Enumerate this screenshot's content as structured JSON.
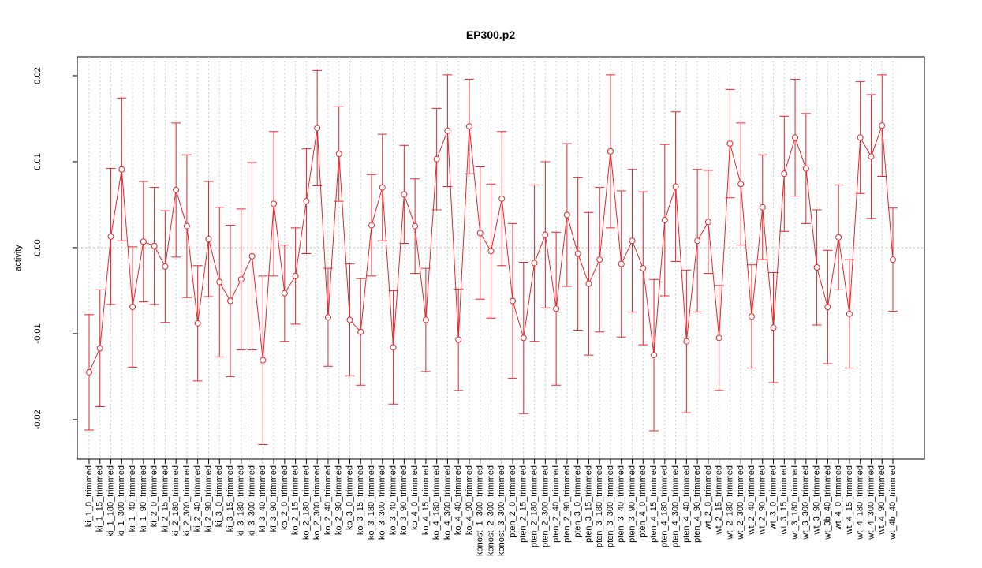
{
  "chart_data": {
    "type": "line",
    "title": "EP300.p2",
    "y_label": "activity",
    "color": "#e8262a",
    "grid": true,
    "reference_line": 0,
    "ylim": [
      -0.0246,
      0.0222
    ],
    "yticks": [
      -0.02,
      -0.01,
      {
        "value": 0,
        "label": "0.00"
      },
      0.01,
      0.02
    ],
    "categories": [
      "ki_1_0_trimmed",
      "ki_1_15_trimmed",
      "ki_1_180_trimmed",
      "ki_1_300_trimmed",
      "ki_1_40_trimmed",
      "ki_1_90_trimmed",
      "ki_2_0_trimmed",
      "ki_2_15_trimmed",
      "ki_2_180_trimmed",
      "ki_2_300_trimmed",
      "ki_2_40_trimmed",
      "ki_2_90_trimmed",
      "ki_3_0_trimmed",
      "ki_3_15_trimmed",
      "ki_3_180_trimmed",
      "ki_3_300_trimmed",
      "ki_3_40_trimmed",
      "ki_3_90_trimmed",
      "ko_2_0_trimmed",
      "ko_2_15_trimmed",
      "ko_2_180_trimmed",
      "ko_2_300_trimmed",
      "ko_2_40_trimmed",
      "ko_2_90_trimmed",
      "ko_3_0_trimmed",
      "ko_3_15_trimmed",
      "ko_3_180_trimmed",
      "ko_3_300_trimmed",
      "ko_3_40_trimmed",
      "ko_3_90_trimmed",
      "ko_4_0_trimmed",
      "ko_4_15_trimmed",
      "ko_4_180_trimmed",
      "ko_4_300_trimmed",
      "ko_4_40_trimmed",
      "ko_4_90_trimmed",
      "konost_1_300_trimmed",
      "konost_2_300_trimmed",
      "konost_3_300_trimmed",
      "pten_2_0_trimmed",
      "pten_2_15_trimmed",
      "pten_2_180_trimmed",
      "pten_2_300_trimmed",
      "pten_2_40_trimmed",
      "pten_2_90_trimmed",
      "pten_3_0_trimmed",
      "pten_3_15_trimmed",
      "pten_3_180_trimmed",
      "pten_3_300_trimmed",
      "pten_3_40_trimmed",
      "pten_3_90_trimmed",
      "pten_4_0_trimmed",
      "pten_4_15_trimmed",
      "pten_4_180_trimmed",
      "pten_4_300_trimmed",
      "pten_4_40_trimmed",
      "pten_4_90_trimmed",
      "wt_2_0_trimmed",
      "wt_2_15_trimmed",
      "wt_2_180_trimmed",
      "wt_2_300_trimmed",
      "wt_2_40_trimmed",
      "wt_2_90_trimmed",
      "wt_3_0_trimmed",
      "wt_3_15_trimmed",
      "wt_3_180_trimmed",
      "wt_3_300_trimmed",
      "wt_3_90_trimmed",
      "wt_3b_40_trimmed",
      "wt_4_0_trimmed",
      "wt_4_15_trimmed",
      "wt_4_180_trimmed",
      "wt_4_300_trimmed",
      "wt_4_90_trimmed",
      "wt_4b_40_trimmed"
    ],
    "values": [
      -0.0145,
      -0.0117,
      0.0013,
      0.0091,
      -0.0069,
      0.0007,
      0.0002,
      -0.0022,
      0.0067,
      0.0025,
      -0.0088,
      0.001,
      -0.004,
      -0.0062,
      -0.0037,
      -0.001,
      -0.0131,
      0.0051,
      -0.0053,
      -0.0033,
      0.0054,
      0.0139,
      -0.0081,
      0.0109,
      -0.0084,
      -0.0098,
      0.0026,
      0.007,
      -0.0116,
      0.0062,
      0.0025,
      -0.0084,
      0.0103,
      0.0136,
      -0.0107,
      0.0141,
      0.0017,
      -0.0004,
      0.0057,
      -0.0062,
      -0.0105,
      -0.0018,
      0.0015,
      -0.0071,
      0.0038,
      -0.0007,
      -0.0042,
      -0.0014,
      0.0112,
      -0.0019,
      0.0008,
      -0.0024,
      -0.0125,
      0.0032,
      0.0071,
      -0.0109,
      0.0008,
      0.003,
      -0.0105,
      0.0121,
      0.0074,
      -0.008,
      0.0047,
      -0.0093,
      0.0086,
      0.0128,
      0.0092,
      -0.0023,
      -0.0069,
      0.0012,
      -0.0077,
      0.0128,
      0.0106,
      0.0142,
      -0.0014
    ],
    "errors": [
      0.0067,
      0.0068,
      0.0079,
      0.0083,
      0.007,
      0.007,
      0.0068,
      0.0065,
      0.0078,
      0.0083,
      0.0067,
      0.0067,
      0.0087,
      0.0088,
      0.0082,
      0.0109,
      0.0098,
      0.0084,
      0.0056,
      0.0056,
      0.0061,
      0.0067,
      0.0057,
      0.0055,
      0.0065,
      0.0062,
      0.0059,
      0.0062,
      0.0066,
      0.0057,
      0.0055,
      0.006,
      0.0059,
      0.0065,
      0.0059,
      0.0055,
      0.0077,
      0.0078,
      0.0078,
      0.009,
      0.0088,
      0.0091,
      0.0085,
      0.0089,
      0.0083,
      0.0089,
      0.0083,
      0.0084,
      0.0089,
      0.0085,
      0.0083,
      0.0089,
      0.0088,
      0.0088,
      0.0087,
      0.0083,
      0.0083,
      0.006,
      0.0061,
      0.0063,
      0.0071,
      0.006,
      0.0061,
      0.0064,
      0.0067,
      0.0068,
      0.0064,
      0.0067,
      0.0066,
      0.0061,
      0.0063,
      0.0065,
      0.0072,
      0.0059,
      0.006
    ]
  }
}
